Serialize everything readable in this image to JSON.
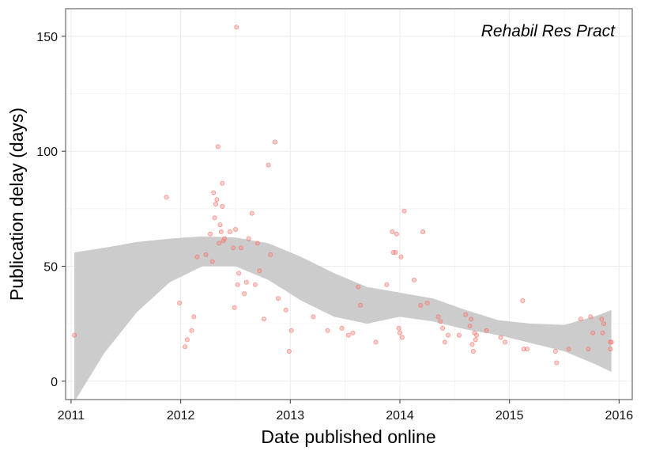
{
  "chart_data": {
    "type": "scatter",
    "title": "",
    "annotation": "Rehabil Res Pract",
    "xlabel": "Date published online",
    "ylabel": "Publication delay (days)",
    "xlim": [
      2010.95,
      2016.12
    ],
    "ylim": [
      -8,
      162
    ],
    "x_ticks": [
      2011,
      2012,
      2013,
      2014,
      2015,
      2016
    ],
    "x_tick_labels": [
      "2011",
      "2012",
      "2013",
      "2014",
      "2015",
      "2016"
    ],
    "y_ticks": [
      0,
      50,
      100,
      150
    ],
    "y_tick_labels": [
      "0",
      "50",
      "100",
      "150"
    ],
    "grid": true,
    "legend": "none",
    "point_color": "#f8766d",
    "band_color": "#cccccc",
    "points": [
      {
        "x": 2011.03,
        "y": 20
      },
      {
        "x": 2011.87,
        "y": 80
      },
      {
        "x": 2011.99,
        "y": 34
      },
      {
        "x": 2012.04,
        "y": 15
      },
      {
        "x": 2012.06,
        "y": 18
      },
      {
        "x": 2012.1,
        "y": 22
      },
      {
        "x": 2012.12,
        "y": 28
      },
      {
        "x": 2012.15,
        "y": 54
      },
      {
        "x": 2012.23,
        "y": 55
      },
      {
        "x": 2012.27,
        "y": 64
      },
      {
        "x": 2012.29,
        "y": 52
      },
      {
        "x": 2012.3,
        "y": 82
      },
      {
        "x": 2012.31,
        "y": 71
      },
      {
        "x": 2012.32,
        "y": 77
      },
      {
        "x": 2012.33,
        "y": 79
      },
      {
        "x": 2012.34,
        "y": 102
      },
      {
        "x": 2012.35,
        "y": 60
      },
      {
        "x": 2012.36,
        "y": 68
      },
      {
        "x": 2012.37,
        "y": 65
      },
      {
        "x": 2012.38,
        "y": 76
      },
      {
        "x": 2012.38,
        "y": 86
      },
      {
        "x": 2012.39,
        "y": 61
      },
      {
        "x": 2012.4,
        "y": 62
      },
      {
        "x": 2012.45,
        "y": 65
      },
      {
        "x": 2012.48,
        "y": 58
      },
      {
        "x": 2012.49,
        "y": 32
      },
      {
        "x": 2012.5,
        "y": 66
      },
      {
        "x": 2012.51,
        "y": 154
      },
      {
        "x": 2012.52,
        "y": 42
      },
      {
        "x": 2012.53,
        "y": 47
      },
      {
        "x": 2012.55,
        "y": 58
      },
      {
        "x": 2012.58,
        "y": 38
      },
      {
        "x": 2012.6,
        "y": 43
      },
      {
        "x": 2012.62,
        "y": 62
      },
      {
        "x": 2012.65,
        "y": 73
      },
      {
        "x": 2012.68,
        "y": 42
      },
      {
        "x": 2012.7,
        "y": 60
      },
      {
        "x": 2012.72,
        "y": 48
      },
      {
        "x": 2012.76,
        "y": 27
      },
      {
        "x": 2012.8,
        "y": 94
      },
      {
        "x": 2012.82,
        "y": 55
      },
      {
        "x": 2012.86,
        "y": 104
      },
      {
        "x": 2012.89,
        "y": 36
      },
      {
        "x": 2012.96,
        "y": 31
      },
      {
        "x": 2012.99,
        "y": 13
      },
      {
        "x": 2013.01,
        "y": 22
      },
      {
        "x": 2013.21,
        "y": 28
      },
      {
        "x": 2013.34,
        "y": 22
      },
      {
        "x": 2013.47,
        "y": 23
      },
      {
        "x": 2013.53,
        "y": 20
      },
      {
        "x": 2013.57,
        "y": 21
      },
      {
        "x": 2013.62,
        "y": 41
      },
      {
        "x": 2013.64,
        "y": 33
      },
      {
        "x": 2013.78,
        "y": 17
      },
      {
        "x": 2013.88,
        "y": 42
      },
      {
        "x": 2013.93,
        "y": 65
      },
      {
        "x": 2013.94,
        "y": 56
      },
      {
        "x": 2013.96,
        "y": 56
      },
      {
        "x": 2013.97,
        "y": 64
      },
      {
        "x": 2013.99,
        "y": 23
      },
      {
        "x": 2014.0,
        "y": 21
      },
      {
        "x": 2014.01,
        "y": 54
      },
      {
        "x": 2014.02,
        "y": 19
      },
      {
        "x": 2014.04,
        "y": 74
      },
      {
        "x": 2014.13,
        "y": 44
      },
      {
        "x": 2014.19,
        "y": 33
      },
      {
        "x": 2014.21,
        "y": 65
      },
      {
        "x": 2014.25,
        "y": 34
      },
      {
        "x": 2014.35,
        "y": 28
      },
      {
        "x": 2014.37,
        "y": 26
      },
      {
        "x": 2014.39,
        "y": 23
      },
      {
        "x": 2014.41,
        "y": 17
      },
      {
        "x": 2014.44,
        "y": 20
      },
      {
        "x": 2014.54,
        "y": 20
      },
      {
        "x": 2014.6,
        "y": 29
      },
      {
        "x": 2014.64,
        "y": 24
      },
      {
        "x": 2014.65,
        "y": 27
      },
      {
        "x": 2014.66,
        "y": 16
      },
      {
        "x": 2014.67,
        "y": 13
      },
      {
        "x": 2014.68,
        "y": 21
      },
      {
        "x": 2014.69,
        "y": 18
      },
      {
        "x": 2014.7,
        "y": 20
      },
      {
        "x": 2014.79,
        "y": 22
      },
      {
        "x": 2014.92,
        "y": 19
      },
      {
        "x": 2014.96,
        "y": 17
      },
      {
        "x": 2015.12,
        "y": 35
      },
      {
        "x": 2015.13,
        "y": 14
      },
      {
        "x": 2015.16,
        "y": 14
      },
      {
        "x": 2015.42,
        "y": 13
      },
      {
        "x": 2015.43,
        "y": 8
      },
      {
        "x": 2015.54,
        "y": 14
      },
      {
        "x": 2015.65,
        "y": 27
      },
      {
        "x": 2015.72,
        "y": 14
      },
      {
        "x": 2015.74,
        "y": 28
      },
      {
        "x": 2015.76,
        "y": 21
      },
      {
        "x": 2015.84,
        "y": 27
      },
      {
        "x": 2015.85,
        "y": 21
      },
      {
        "x": 2015.86,
        "y": 25
      },
      {
        "x": 2015.92,
        "y": 17
      },
      {
        "x": 2015.92,
        "y": 14
      },
      {
        "x": 2015.93,
        "y": 17
      }
    ],
    "band": {
      "x": [
        2011.03,
        2011.3,
        2011.6,
        2011.9,
        2012.2,
        2012.5,
        2012.8,
        2013.1,
        2013.4,
        2013.7,
        2014.0,
        2014.3,
        2014.6,
        2014.9,
        2015.2,
        2015.5,
        2015.8,
        2015.93
      ],
      "upper": [
        56,
        58,
        60.5,
        62,
        63,
        62.5,
        60,
        54,
        47,
        41,
        38.5,
        36,
        31,
        26.5,
        25,
        24.5,
        28.5,
        31
      ],
      "lower": [
        -9,
        12,
        30,
        43,
        50,
        50,
        44,
        35,
        28,
        25,
        28,
        26,
        22.5,
        20,
        16.5,
        13,
        7,
        4
      ]
    }
  }
}
